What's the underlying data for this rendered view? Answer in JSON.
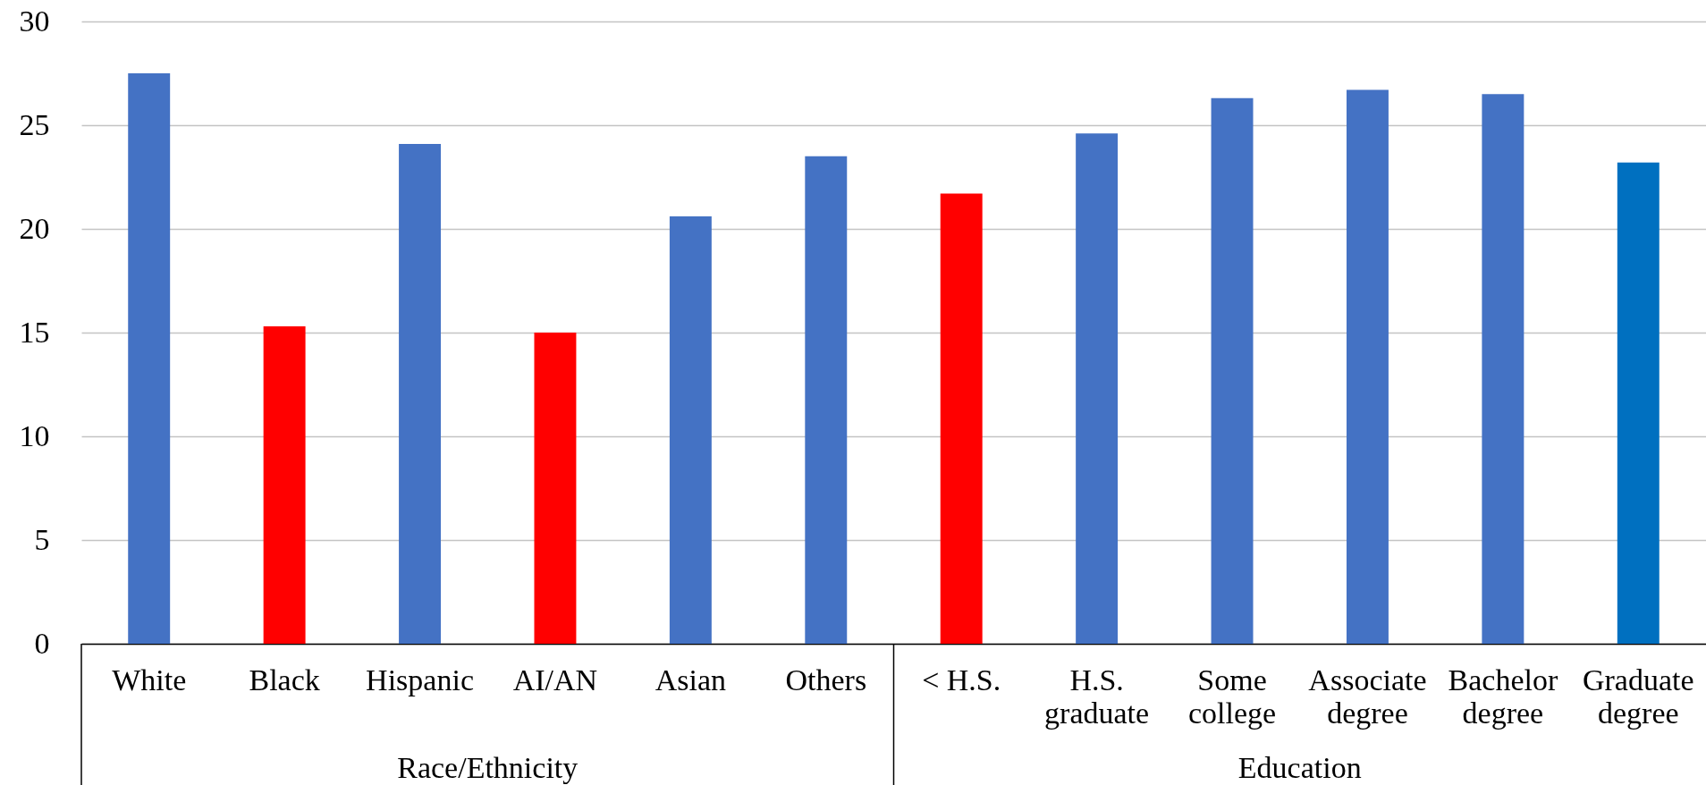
{
  "chart_data": {
    "type": "bar",
    "categories": [
      "White",
      "Black",
      "Hispanic",
      "AI/AN",
      "Asian",
      "Others",
      "< H.S.",
      "H.S. graduate",
      "Some college",
      "Associate degree",
      "Bachelor degree",
      "Graduate degree"
    ],
    "values": [
      27.5,
      15.3,
      24.1,
      15.0,
      20.6,
      23.5,
      21.7,
      24.6,
      26.3,
      26.7,
      26.5,
      23.2
    ],
    "colors": [
      "#4472c4",
      "#ff0000",
      "#4472c4",
      "#ff0000",
      "#4472c4",
      "#4472c4",
      "#ff0000",
      "#4472c4",
      "#4472c4",
      "#4472c4",
      "#4472c4",
      "#0070c0"
    ],
    "ylim": [
      0,
      30
    ],
    "yticks": [
      0,
      5,
      10,
      15,
      20,
      25,
      30
    ],
    "grid": "y",
    "annotations": [
      "Race/Ethnicity",
      "Education"
    ]
  }
}
